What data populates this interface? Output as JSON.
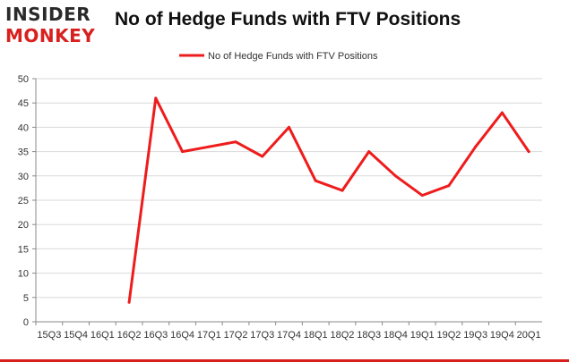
{
  "logo": {
    "line1": "INSIDER",
    "line2": "MONKEY"
  },
  "chart_data": {
    "type": "line",
    "title": "No of Hedge Funds with FTV Positions",
    "xlabel": "",
    "ylabel": "",
    "categories": [
      "15Q3",
      "15Q4",
      "16Q1",
      "16Q2",
      "16Q3",
      "16Q4",
      "17Q1",
      "17Q2",
      "17Q3",
      "17Q4",
      "18Q1",
      "18Q2",
      "18Q3",
      "18Q4",
      "19Q1",
      "19Q2",
      "19Q3",
      "19Q4",
      "20Q1"
    ],
    "series": [
      {
        "name": "No of Hedge Funds with FTV Positions",
        "color": "#ee1c1c",
        "values": [
          null,
          null,
          null,
          4,
          46,
          35,
          36,
          37,
          34,
          40,
          29,
          27,
          35,
          30,
          26,
          28,
          36,
          43,
          35
        ]
      }
    ],
    "ylim": [
      0,
      50
    ],
    "yticks": [
      0,
      5,
      10,
      15,
      20,
      25,
      30,
      35,
      40,
      45,
      50
    ],
    "grid": "horizontal",
    "legend_position": "top-center"
  }
}
